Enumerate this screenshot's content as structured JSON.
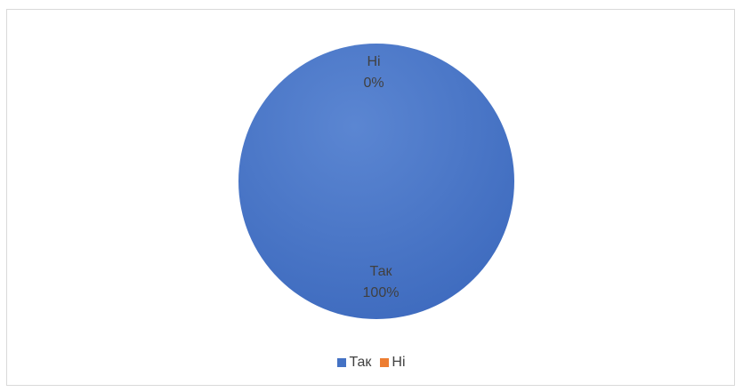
{
  "chart_data": {
    "type": "pie",
    "categories": [
      "Так",
      "Ні"
    ],
    "values": [
      100,
      0
    ],
    "data_labels": [
      {
        "category": "Так",
        "percent": "100%"
      },
      {
        "category": "Ні",
        "percent": "0%"
      }
    ],
    "colors": [
      "#4472c4",
      "#ed7d31"
    ],
    "legend": {
      "position": "bottom",
      "entries": [
        "Так",
        "Ні"
      ]
    }
  }
}
